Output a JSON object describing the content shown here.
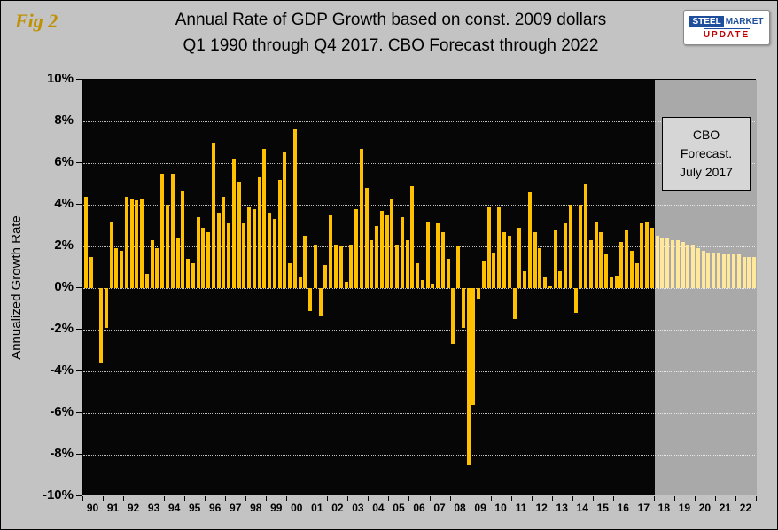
{
  "header": {
    "fig_label": "Fig 2",
    "title_line1": "Annual Rate of GDP Growth based on const. 2009 dollars",
    "title_line2": "Q1 1990 through Q4 2017. CBO Forecast through 2022",
    "logo": {
      "steel": "STEEL",
      "market": "MARKET",
      "update": "UPDATE"
    }
  },
  "chart_data": {
    "type": "bar",
    "title": "Annual Rate of GDP Growth based on const. 2009 dollars, Q1 1990 through Q4 2017. CBO Forecast through 2022",
    "ylabel": "Annualized Growth Rate",
    "xlabel": "",
    "ylim": [
      -10,
      10
    ],
    "y_ticks": [
      10,
      8,
      6,
      4,
      2,
      0,
      -2,
      -4,
      -6,
      -8,
      -10
    ],
    "y_tick_suffix": "%",
    "grid": "horizontal-dotted",
    "plot_bg": "#060606",
    "forecast_bg": "#a9a9a9",
    "bar_color": "#FFC000",
    "forecast_bar_color": "#FFE79C",
    "annotation": {
      "line1": "CBO",
      "line2": "Forecast.",
      "line3": "July 2017"
    },
    "years": [
      {
        "label": "90",
        "forecast": false,
        "values": [
          4.4,
          1.5,
          0.0,
          -3.6
        ]
      },
      {
        "label": "91",
        "forecast": false,
        "values": [
          -1.9,
          3.2,
          1.9,
          1.8
        ]
      },
      {
        "label": "92",
        "forecast": false,
        "values": [
          4.4,
          4.3,
          4.2,
          4.3
        ]
      },
      {
        "label": "93",
        "forecast": false,
        "values": [
          0.7,
          2.3,
          1.9,
          5.5
        ]
      },
      {
        "label": "94",
        "forecast": false,
        "values": [
          4.0,
          5.5,
          2.4,
          4.7
        ]
      },
      {
        "label": "95",
        "forecast": false,
        "values": [
          1.4,
          1.2,
          3.4,
          2.9
        ]
      },
      {
        "label": "96",
        "forecast": false,
        "values": [
          2.7,
          7.0,
          3.6,
          4.4
        ]
      },
      {
        "label": "97",
        "forecast": false,
        "values": [
          3.1,
          6.2,
          5.1,
          3.1
        ]
      },
      {
        "label": "98",
        "forecast": false,
        "values": [
          3.9,
          3.8,
          5.3,
          6.7
        ]
      },
      {
        "label": "99",
        "forecast": false,
        "values": [
          3.6,
          3.3,
          5.2,
          6.5
        ]
      },
      {
        "label": "00",
        "forecast": false,
        "values": [
          1.2,
          7.6,
          0.5,
          2.5
        ]
      },
      {
        "label": "01",
        "forecast": false,
        "values": [
          -1.1,
          2.1,
          -1.3,
          1.1
        ]
      },
      {
        "label": "02",
        "forecast": false,
        "values": [
          3.5,
          2.1,
          2.0,
          0.3
        ]
      },
      {
        "label": "03",
        "forecast": false,
        "values": [
          2.1,
          3.8,
          6.7,
          4.8
        ]
      },
      {
        "label": "04",
        "forecast": false,
        "values": [
          2.3,
          3.0,
          3.7,
          3.5
        ]
      },
      {
        "label": "05",
        "forecast": false,
        "values": [
          4.3,
          2.1,
          3.4,
          2.3
        ]
      },
      {
        "label": "06",
        "forecast": false,
        "values": [
          4.9,
          1.2,
          0.4,
          3.2
        ]
      },
      {
        "label": "07",
        "forecast": false,
        "values": [
          0.2,
          3.1,
          2.7,
          1.4
        ]
      },
      {
        "label": "08",
        "forecast": false,
        "values": [
          -2.7,
          2.0,
          -1.9,
          -8.5
        ]
      },
      {
        "label": "09",
        "forecast": false,
        "values": [
          -5.6,
          -0.5,
          1.3,
          3.9
        ]
      },
      {
        "label": "10",
        "forecast": false,
        "values": [
          1.7,
          3.9,
          2.7,
          2.5
        ]
      },
      {
        "label": "11",
        "forecast": false,
        "values": [
          -1.5,
          2.9,
          0.8,
          4.6
        ]
      },
      {
        "label": "12",
        "forecast": false,
        "values": [
          2.7,
          1.9,
          0.5,
          0.1
        ]
      },
      {
        "label": "13",
        "forecast": false,
        "values": [
          2.8,
          0.8,
          3.1,
          4.0
        ]
      },
      {
        "label": "14",
        "forecast": false,
        "values": [
          -1.2,
          4.0,
          5.0,
          2.3
        ]
      },
      {
        "label": "15",
        "forecast": false,
        "values": [
          3.2,
          2.7,
          1.6,
          0.5
        ]
      },
      {
        "label": "16",
        "forecast": false,
        "values": [
          0.6,
          2.2,
          2.8,
          1.8
        ]
      },
      {
        "label": "17",
        "forecast": false,
        "values": [
          1.2,
          3.1,
          3.2,
          2.9
        ]
      },
      {
        "label": "18",
        "forecast": true,
        "values": [
          2.5,
          2.4,
          2.4,
          2.3
        ]
      },
      {
        "label": "19",
        "forecast": true,
        "values": [
          2.3,
          2.2,
          2.1,
          2.1
        ]
      },
      {
        "label": "20",
        "forecast": true,
        "values": [
          1.9,
          1.8,
          1.7,
          1.7
        ]
      },
      {
        "label": "21",
        "forecast": true,
        "values": [
          1.7,
          1.6,
          1.6,
          1.6
        ]
      },
      {
        "label": "22",
        "forecast": true,
        "values": [
          1.6,
          1.5,
          1.5,
          1.5
        ]
      }
    ]
  }
}
